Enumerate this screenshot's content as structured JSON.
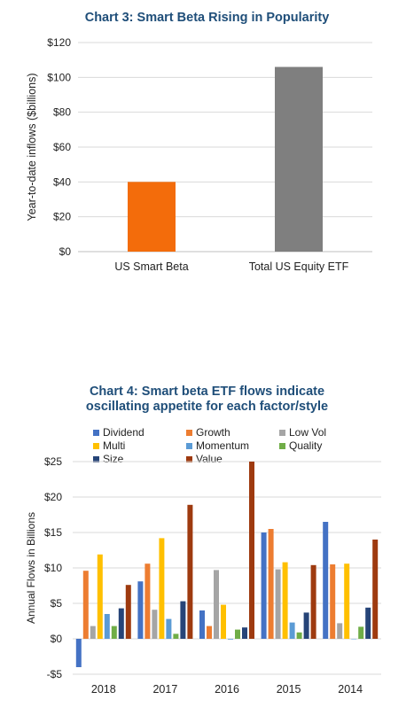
{
  "chart_data": [
    {
      "type": "bar",
      "title": "Chart 3: Smart Beta Rising in Popularity",
      "ylabel": "Year-to-date inflows ($billions)",
      "xlabel": "",
      "categories": [
        "US Smart Beta",
        "Total US Equity ETF"
      ],
      "values": [
        40,
        106
      ],
      "bar_colors": [
        "#f36c0b",
        "#7f7f7f"
      ],
      "ylim": [
        0,
        120
      ],
      "yticks": [
        0,
        20,
        40,
        60,
        80,
        100,
        120
      ],
      "ytick_labels": [
        "$0",
        "$20",
        "$40",
        "$60",
        "$80",
        "$100",
        "$120"
      ],
      "grid": true,
      "legend": null
    },
    {
      "type": "bar",
      "title": "Chart 4: Smart beta ETF flows indicate oscillating appetite for each factor/style",
      "title_lines": [
        "Chart 4: Smart beta ETF flows indicate",
        "oscillating appetite for each factor/style"
      ],
      "ylabel": "Annual Flows in Billions",
      "xlabel": "",
      "categories": [
        "2018",
        "2017",
        "2016",
        "2015",
        "2014"
      ],
      "ylim": [
        -5,
        25
      ],
      "yticks": [
        -5,
        0,
        5,
        10,
        15,
        20,
        25
      ],
      "ytick_labels": [
        "-$5",
        "$0",
        "$5",
        "$10",
        "$15",
        "$20",
        "$25"
      ],
      "grid": true,
      "legend_position": "top",
      "series": [
        {
          "name": "Dividend",
          "color": "#4472c4",
          "values": [
            -4.0,
            8.1,
            4.0,
            15.0,
            16.5
          ]
        },
        {
          "name": "Growth",
          "color": "#ed7d31",
          "values": [
            9.6,
            10.6,
            1.8,
            15.5,
            10.5
          ]
        },
        {
          "name": "Low Vol",
          "color": "#a5a5a5",
          "values": [
            1.8,
            4.1,
            9.7,
            9.8,
            2.2
          ]
        },
        {
          "name": "Multi",
          "color": "#ffc000",
          "values": [
            11.9,
            14.2,
            4.8,
            10.8,
            10.6
          ]
        },
        {
          "name": "Momentum",
          "color": "#5b9bd5",
          "values": [
            3.5,
            2.8,
            -0.1,
            2.3,
            0.0
          ]
        },
        {
          "name": "Quality",
          "color": "#70ad47",
          "values": [
            1.8,
            0.7,
            1.3,
            0.9,
            1.7
          ]
        },
        {
          "name": "Size",
          "color": "#264478",
          "values": [
            4.3,
            5.3,
            1.6,
            3.7,
            4.4
          ]
        },
        {
          "name": "Value",
          "color": "#9e3a0f",
          "values": [
            7.6,
            18.9,
            25.0,
            10.4,
            14.0
          ]
        }
      ]
    }
  ]
}
